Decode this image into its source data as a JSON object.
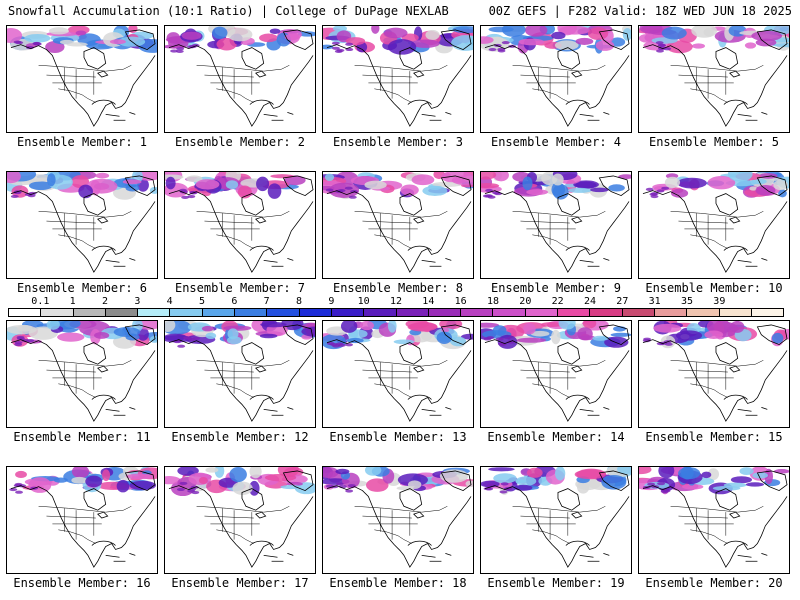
{
  "header": {
    "left": "Snowfall Accumulation (10:1 Ratio) | College of DuPage NEXLAB",
    "right": "00Z GEFS | F282 Valid: 18Z WED JUN 18 2025"
  },
  "colorbar": {
    "ticks": [
      "0.1",
      "1",
      "2",
      "3",
      "4",
      "5",
      "6",
      "7",
      "8",
      "9",
      "10",
      "12",
      "14",
      "16",
      "18",
      "20",
      "22",
      "24",
      "27",
      "31",
      "35",
      "39"
    ],
    "colors": [
      "#ffffff",
      "#e0e0e0",
      "#b8b8b8",
      "#8c8c8c",
      "#b4ecf8",
      "#86cbf0",
      "#5aa6ea",
      "#3b7ee2",
      "#2451e0",
      "#1c2cd8",
      "#3a1dc8",
      "#5a1cbc",
      "#7a20b8",
      "#9a2cb8",
      "#b840c0",
      "#cc50c8",
      "#e064cc",
      "#e84aa4",
      "#d83c84",
      "#c84a70",
      "#e89c9c",
      "#f0c4b0",
      "#f8e4d0",
      "#fdf4e8"
    ]
  },
  "members": [
    {
      "label": "Ensemble Member: 1"
    },
    {
      "label": "Ensemble Member: 2"
    },
    {
      "label": "Ensemble Member: 3"
    },
    {
      "label": "Ensemble Member: 4"
    },
    {
      "label": "Ensemble Member: 5"
    },
    {
      "label": "Ensemble Member: 6"
    },
    {
      "label": "Ensemble Member: 7"
    },
    {
      "label": "Ensemble Member: 8"
    },
    {
      "label": "Ensemble Member: 9"
    },
    {
      "label": "Ensemble Member: 10"
    },
    {
      "label": "Ensemble Member: 11"
    },
    {
      "label": "Ensemble Member: 12"
    },
    {
      "label": "Ensemble Member: 13"
    },
    {
      "label": "Ensemble Member: 14"
    },
    {
      "label": "Ensemble Member: 15"
    },
    {
      "label": "Ensemble Member: 16"
    },
    {
      "label": "Ensemble Member: 17"
    },
    {
      "label": "Ensemble Member: 18"
    },
    {
      "label": "Ensemble Member: 19"
    },
    {
      "label": "Ensemble Member: 20"
    }
  ]
}
